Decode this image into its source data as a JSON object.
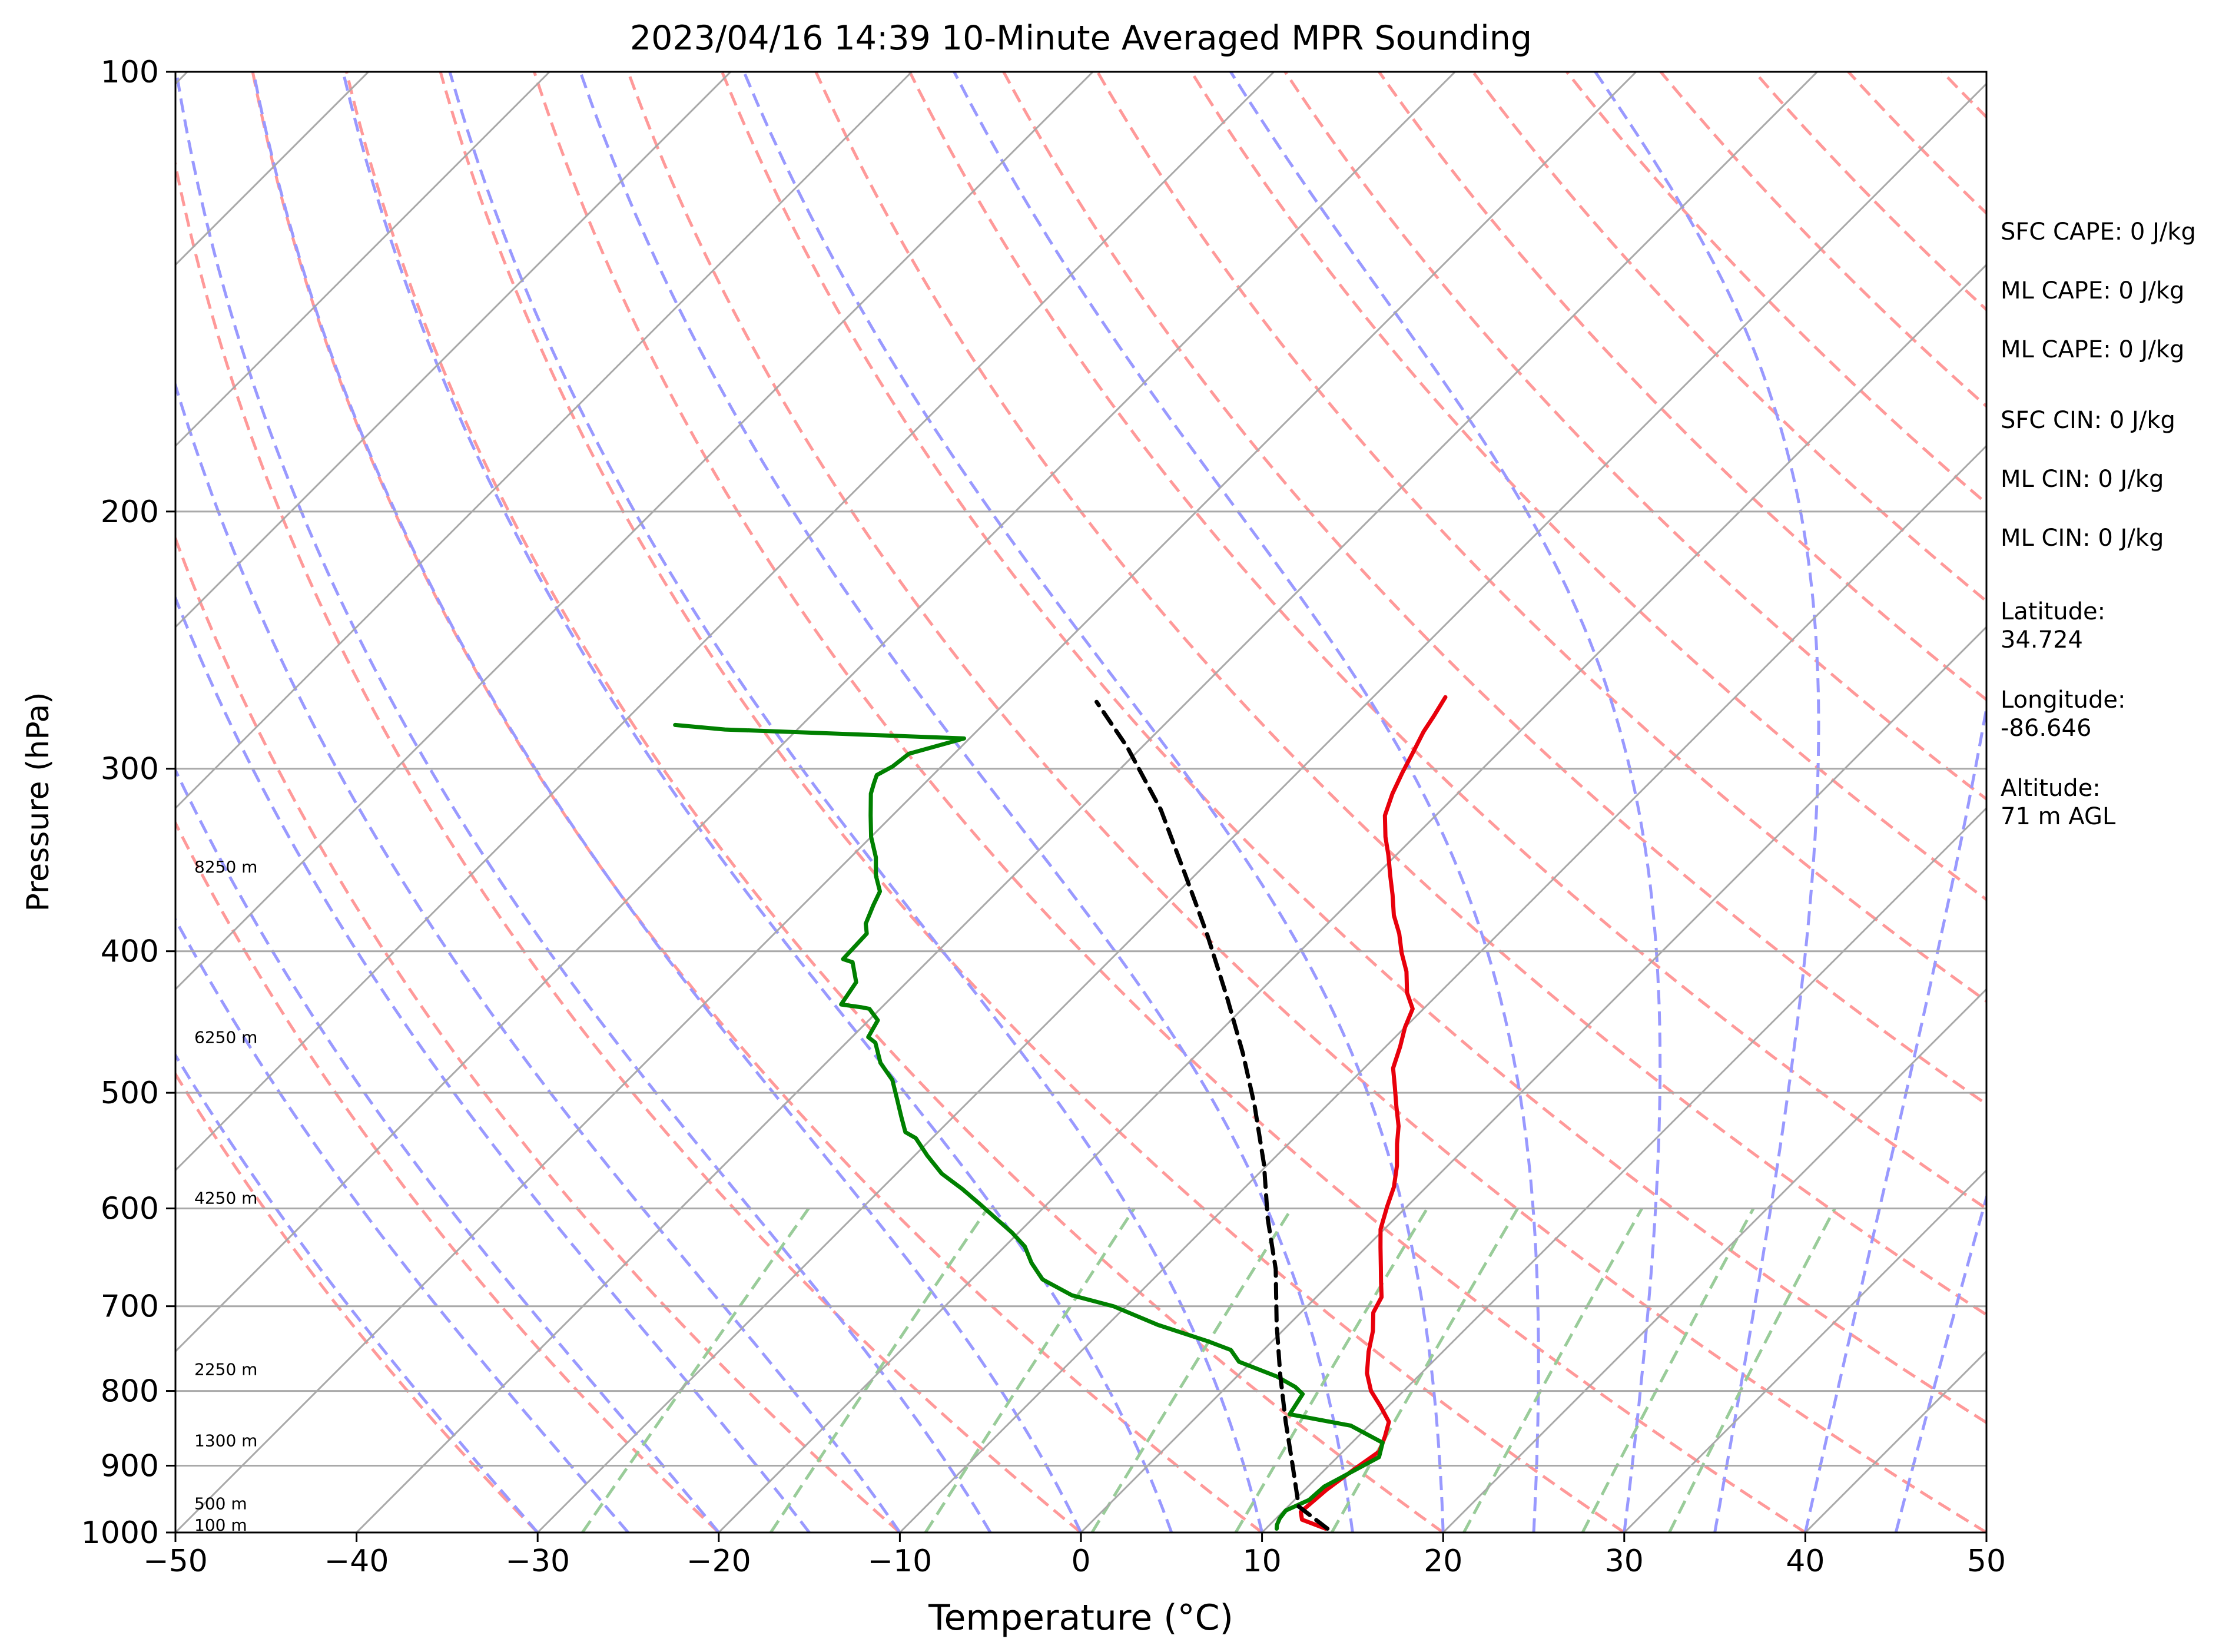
{
  "chart_data": {
    "type": "line",
    "title": "2023/04/16 14:39 10-Minute Averaged MPR Sounding",
    "xlabel": "Temperature (°C)",
    "ylabel": "Pressure (hPa)",
    "xlim": [
      -50,
      50
    ],
    "ylim": [
      1000,
      100
    ],
    "y_scale": "log",
    "skew_t": true,
    "x_ticks": [
      "−50",
      "−40",
      "−30",
      "−20",
      "−10",
      "0",
      "10",
      "20",
      "30",
      "40",
      "50"
    ],
    "y_ticks": [
      "100",
      "200",
      "300",
      "400",
      "500",
      "600",
      "700",
      "800",
      "900",
      "1000"
    ],
    "height_labels": [
      {
        "text": "100 m",
        "pressure": 988
      },
      {
        "text": "500 m",
        "pressure": 955
      },
      {
        "text": "1300 m",
        "pressure": 865
      },
      {
        "text": "2250 m",
        "pressure": 773
      },
      {
        "text": "4250 m",
        "pressure": 590
      },
      {
        "text": "6250 m",
        "pressure": 458
      },
      {
        "text": "8250 m",
        "pressure": 350
      }
    ],
    "series": [
      {
        "role": "temperature",
        "color": "#e8000b",
        "points": [
          [
            13.3,
            994
          ],
          [
            11.5,
            980
          ],
          [
            11.0,
            968
          ],
          [
            11.2,
            935
          ],
          [
            11.6,
            905
          ],
          [
            12.0,
            880
          ],
          [
            11.5,
            860
          ],
          [
            10.9,
            840
          ],
          [
            9.6,
            820
          ],
          [
            8.2,
            800
          ],
          [
            7.0,
            778
          ],
          [
            5.9,
            752
          ],
          [
            5.0,
            728
          ],
          [
            4.0,
            707
          ],
          [
            3.6,
            690
          ],
          [
            2.7,
            673
          ],
          [
            1.9,
            658
          ],
          [
            0.8,
            638
          ],
          [
            -0.2,
            620
          ],
          [
            -1.1,
            598
          ],
          [
            -1.8,
            580
          ],
          [
            -2.8,
            561
          ],
          [
            -4.0,
            542
          ],
          [
            -4.9,
            527
          ],
          [
            -6.1,
            511
          ],
          [
            -7.3,
            495
          ],
          [
            -8.4,
            481
          ],
          [
            -9.2,
            465
          ],
          [
            -10.0,
            451
          ],
          [
            -10.6,
            438
          ],
          [
            -11.8,
            427
          ],
          [
            -13.0,
            413
          ],
          [
            -14.3,
            401
          ],
          [
            -15.5,
            389
          ],
          [
            -16.8,
            378
          ],
          [
            -18.0,
            366
          ],
          [
            -19.2,
            355
          ],
          [
            -20.4,
            344
          ],
          [
            -21.6,
            334
          ],
          [
            -22.8,
            323
          ],
          [
            -23.6,
            312
          ],
          [
            -24.2,
            302
          ],
          [
            -24.7,
            293
          ],
          [
            -25.3,
            283
          ],
          [
            -25.6,
            276
          ],
          [
            -26.0,
            268
          ]
        ]
      },
      {
        "role": "dewpoint",
        "color": "#008000",
        "points": [
          [
            10.6,
            994
          ],
          [
            10.4,
            988
          ],
          [
            10.2,
            978
          ],
          [
            10.1,
            966
          ],
          [
            10.8,
            950
          ],
          [
            10.9,
            930
          ],
          [
            11.3,
            918
          ],
          [
            12.3,
            888
          ],
          [
            11.7,
            868
          ],
          [
            9.0,
            845
          ],
          [
            5.0,
            830
          ],
          [
            4.6,
            804
          ],
          [
            3.8,
            795
          ],
          [
            2.2,
            782
          ],
          [
            -0.7,
            764
          ],
          [
            -1.8,
            750
          ],
          [
            -3.5,
            740
          ],
          [
            -7.2,
            721
          ],
          [
            -10.7,
            700
          ],
          [
            -13.6,
            688
          ],
          [
            -16.1,
            671
          ],
          [
            -17.6,
            654
          ],
          [
            -18.9,
            637
          ],
          [
            -20.4,
            623
          ],
          [
            -22.1,
            609
          ],
          [
            -23.7,
            596
          ],
          [
            -25.5,
            582
          ],
          [
            -27.5,
            568
          ],
          [
            -29.3,
            552
          ],
          [
            -30.9,
            537
          ],
          [
            -31.8,
            532
          ],
          [
            -32.9,
            519
          ],
          [
            -34.0,
            506
          ],
          [
            -35.4,
            490
          ],
          [
            -37.0,
            477
          ],
          [
            -38.4,
            462
          ],
          [
            -39.1,
            458
          ],
          [
            -39.5,
            446
          ],
          [
            -40.6,
            438
          ],
          [
            -41.1,
            437
          ],
          [
            -42.4,
            435
          ],
          [
            -42.8,
            420
          ],
          [
            -44.1,
            407
          ],
          [
            -44.8,
            405
          ],
          [
            -44.9,
            389
          ],
          [
            -45.5,
            383
          ],
          [
            -46.1,
            372
          ],
          [
            -46.5,
            364
          ],
          [
            -47.6,
            355
          ],
          [
            -48.6,
            345
          ],
          [
            -50.0,
            334
          ],
          [
            -51.2,
            323
          ],
          [
            -52.4,
            312
          ],
          [
            -52.8,
            307
          ],
          [
            -53.1,
            303
          ],
          [
            -52.7,
            299
          ],
          [
            -52.5,
            293
          ],
          [
            -50.3,
            286
          ],
          [
            -64.0,
            282
          ],
          [
            -67.0,
            280
          ]
        ]
      },
      {
        "role": "parcel",
        "color": "#000000",
        "points": [
          [
            13.4,
            994
          ],
          [
            10.6,
            960
          ],
          [
            8.0,
            900
          ],
          [
            5.2,
            840
          ],
          [
            2.3,
            780
          ],
          [
            -0.7,
            720
          ],
          [
            -3.8,
            660
          ],
          [
            -7.0,
            610
          ],
          [
            -10.2,
            560
          ],
          [
            -14.0,
            510
          ],
          [
            -17.5,
            470
          ],
          [
            -21.5,
            430
          ],
          [
            -26.0,
            390
          ],
          [
            -30.5,
            355
          ],
          [
            -35.5,
            320
          ],
          [
            -40.8,
            290
          ],
          [
            -45.0,
            270
          ]
        ]
      }
    ]
  },
  "info_panel": {
    "sfc_cape": "SFC CAPE: 0 J/kg",
    "ml_cape_1": "ML CAPE: 0 J/kg",
    "ml_cape_2": "ML CAPE: 0 J/kg",
    "sfc_cin": "SFC CIN: 0 J/kg",
    "ml_cin_1": "ML CIN: 0 J/kg",
    "ml_cin_2": "ML CIN: 0 J/kg",
    "latitude": "Latitude:\n34.724",
    "longitude": "Longitude:\n-86.646",
    "altitude": "Altitude:\n71 m AGL"
  },
  "colors": {
    "isotherm": "#a9a9a9",
    "dry_adiabat": "#ff9999",
    "moist_adiabat": "#9999ff",
    "mixing_ratio": "#99cc99",
    "isobar": "#a9a9a9"
  }
}
